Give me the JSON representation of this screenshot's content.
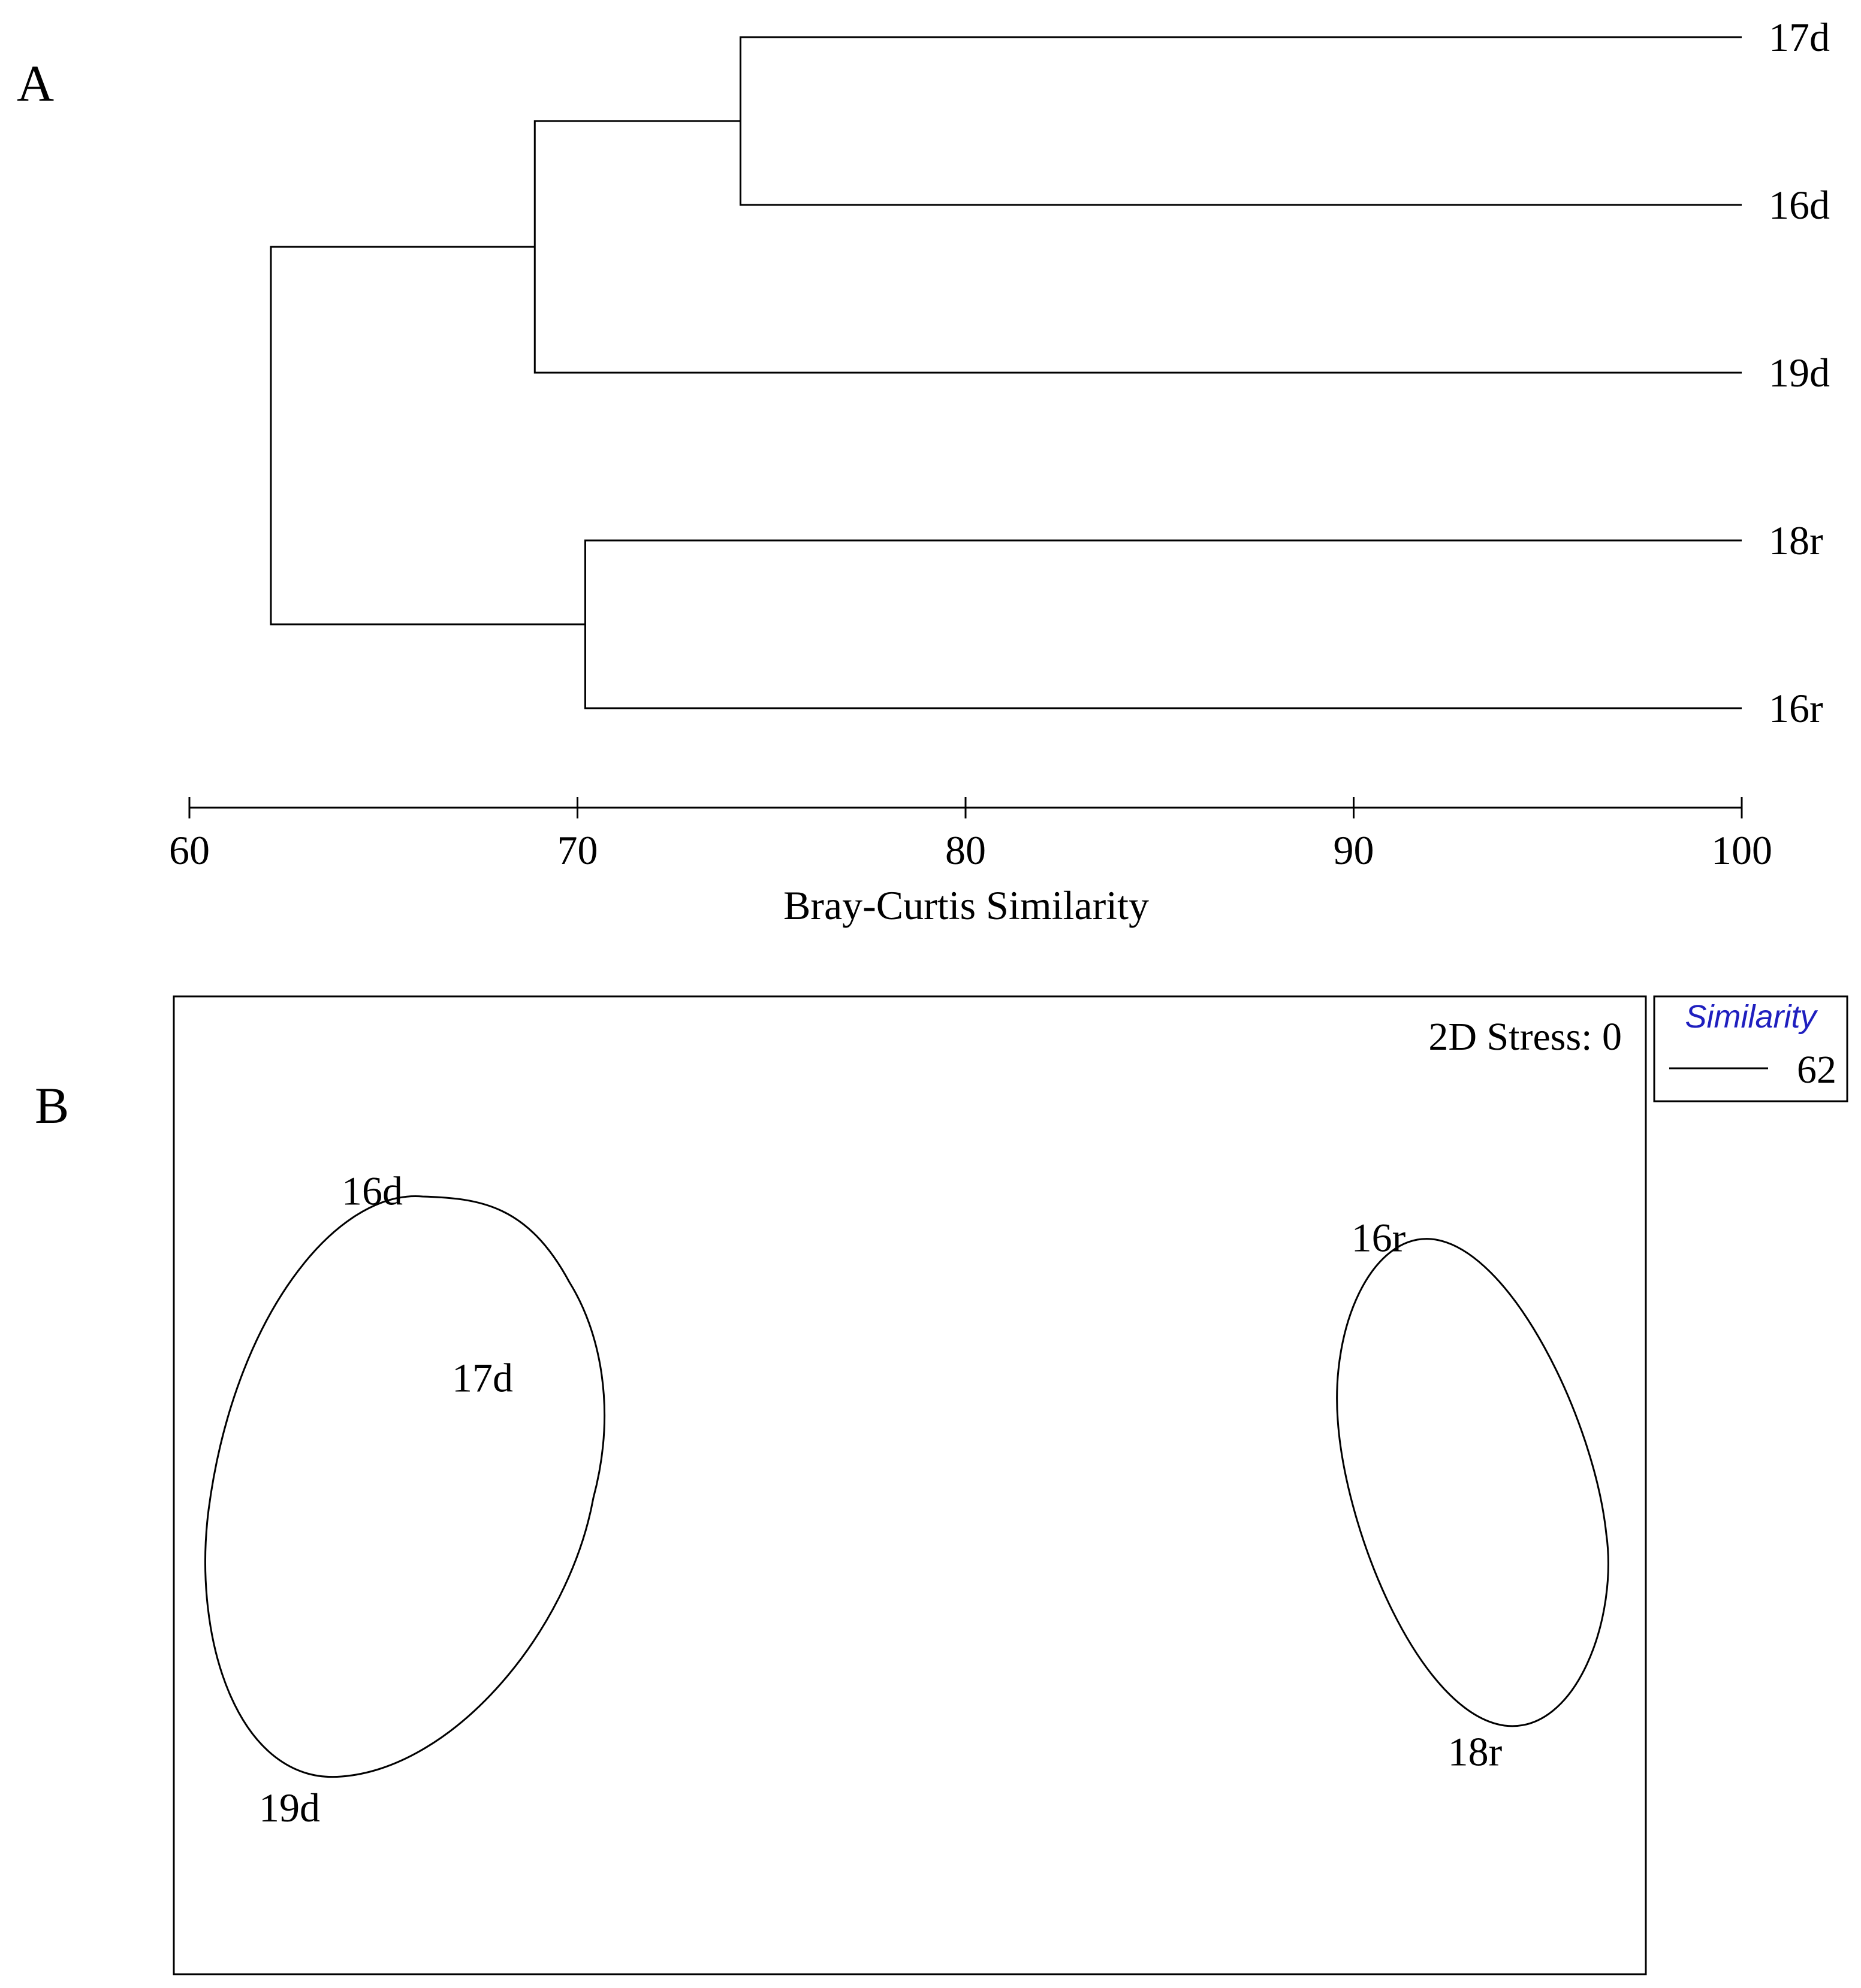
{
  "panels": {
    "a_label": "A",
    "b_label": "B"
  },
  "dendrogram": {
    "leaves": [
      "17d",
      "16d",
      "19d",
      "18r",
      "16r"
    ],
    "merges": [
      {
        "left": "17d",
        "right": "16d",
        "similarity": 74.2
      },
      {
        "left": "17d+16d",
        "right": "19d",
        "similarity": 68.9
      },
      {
        "left": "18r",
        "right": "16r",
        "similarity": 70.2
      },
      {
        "left": "17d+16d+19d",
        "right": "18r+16r",
        "similarity": 62.1
      }
    ],
    "axis": {
      "label": "Bray-Curtis Similarity",
      "min": 60,
      "max": 100,
      "ticks": [
        "60",
        "70",
        "80",
        "90",
        "100"
      ]
    }
  },
  "mds": {
    "stress_label": "2D Stress: 0",
    "points": [
      {
        "label": "16d",
        "x": -0.78,
        "y": 0.62
      },
      {
        "label": "17d",
        "x": -0.62,
        "y": 0.22
      },
      {
        "label": "19d",
        "x": -0.9,
        "y": -0.7
      },
      {
        "label": "16r",
        "x": 0.68,
        "y": 0.52
      },
      {
        "label": "18r",
        "x": 0.82,
        "y": -0.58
      }
    ],
    "groups": [
      {
        "members": [
          "16d",
          "17d",
          "19d"
        ],
        "similarity": 62
      },
      {
        "members": [
          "16r",
          "18r"
        ],
        "similarity": 62
      }
    ],
    "legend": {
      "title": "Similarity",
      "title_color": "#1f1fbf",
      "value": "62"
    }
  }
}
